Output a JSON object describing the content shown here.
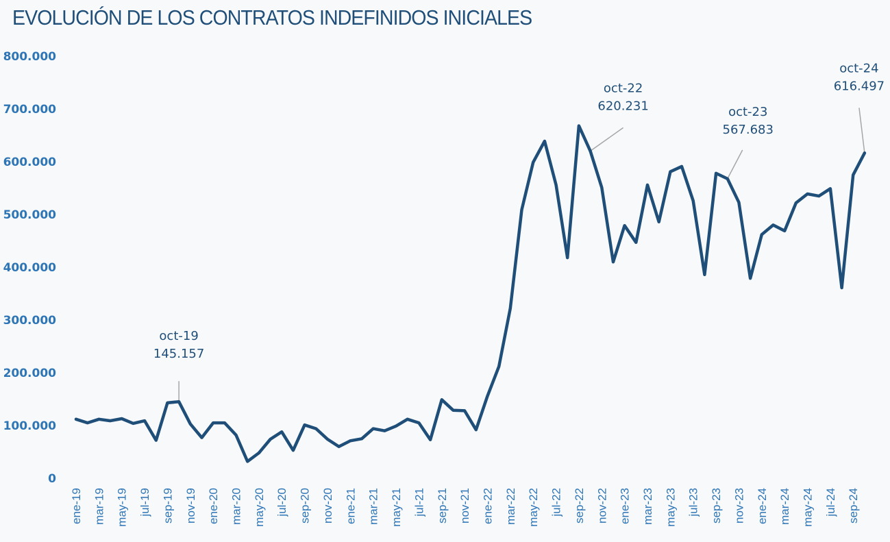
{
  "chart_data": {
    "type": "line",
    "title": "EVOLUCIÓN DE LOS CONTRATOS INDEFINIDOS INICIALES",
    "xlabel": "",
    "ylabel": "",
    "ylim": [
      0,
      800000
    ],
    "yticks": [
      0,
      100000,
      200000,
      300000,
      400000,
      500000,
      600000,
      700000,
      800000
    ],
    "ytick_labels": [
      "0",
      "100.000",
      "200.000",
      "300.000",
      "400.000",
      "500.000",
      "600.000",
      "700.000",
      "800.000"
    ],
    "grid": false,
    "legend": "none",
    "line_color": "#1f4e79",
    "tick_color": "#2e75b6",
    "x": [
      "ene-19",
      "feb-19",
      "mar-19",
      "abr-19",
      "may-19",
      "jun-19",
      "jul-19",
      "ago-19",
      "sep-19",
      "oct-19",
      "nov-19",
      "dic-19",
      "ene-20",
      "feb-20",
      "mar-20",
      "abr-20",
      "may-20",
      "jun-20",
      "jul-20",
      "ago-20",
      "sep-20",
      "oct-20",
      "nov-20",
      "dic-20",
      "ene-21",
      "feb-21",
      "mar-21",
      "abr-21",
      "may-21",
      "jun-21",
      "jul-21",
      "ago-21",
      "sep-21",
      "oct-21",
      "nov-21",
      "dic-21",
      "ene-22",
      "feb-22",
      "mar-22",
      "abr-22",
      "may-22",
      "jun-22",
      "jul-22",
      "ago-22",
      "sep-22",
      "oct-22",
      "nov-22",
      "dic-22",
      "ene-23",
      "feb-23",
      "mar-23",
      "abr-23",
      "may-23",
      "jun-23",
      "jul-23",
      "ago-23",
      "sep-23",
      "oct-23",
      "nov-23",
      "dic-23",
      "ene-24",
      "feb-24",
      "mar-24",
      "abr-24",
      "may-24",
      "jun-24",
      "jul-24",
      "ago-24",
      "sep-24",
      "oct-24"
    ],
    "xtick_labels": [
      "ene-19",
      "mar-19",
      "may-19",
      "jul-19",
      "sep-19",
      "nov-19",
      "ene-20",
      "mar-20",
      "may-20",
      "jul-20",
      "sep-20",
      "nov-20",
      "ene-21",
      "mar-21",
      "may-21",
      "jul-21",
      "sep-21",
      "nov-21",
      "ene-22",
      "mar-22",
      "may-22",
      "jul-22",
      "sep-22",
      "nov-22",
      "ene-23",
      "mar-23",
      "may-23",
      "jul-23",
      "sep-23",
      "nov-23",
      "ene-24",
      "mar-24",
      "may-24",
      "jul-24",
      "sep-24"
    ],
    "series": [
      {
        "name": "Contratos indefinidos iniciales",
        "values": [
          112000,
          105000,
          112000,
          109000,
          113000,
          104000,
          109000,
          72000,
          143000,
          145157,
          103000,
          77000,
          105000,
          105000,
          82000,
          32000,
          48000,
          74000,
          88000,
          53000,
          101000,
          94000,
          74000,
          60000,
          71000,
          75000,
          94000,
          90000,
          99000,
          112000,
          105000,
          73000,
          149000,
          129000,
          128000,
          92000,
          156000,
          212000,
          322000,
          509000,
          599000,
          639000,
          556000,
          418000,
          668000,
          620231,
          551000,
          410000,
          479000,
          447000,
          556000,
          486000,
          581000,
          591000,
          526000,
          386000,
          578000,
          567683,
          523000,
          379000,
          462000,
          480000,
          469000,
          522000,
          539000,
          535000,
          549000,
          361000,
          575000,
          616497
        ]
      }
    ],
    "annotations": [
      {
        "index": 9,
        "label": "oct-19",
        "value": "145.157"
      },
      {
        "index": 45,
        "label": "oct-22",
        "value": "620.231"
      },
      {
        "index": 57,
        "label": "oct-23",
        "value": "567.683"
      },
      {
        "index": 69,
        "label": "oct-24",
        "value": "616.497"
      }
    ]
  }
}
